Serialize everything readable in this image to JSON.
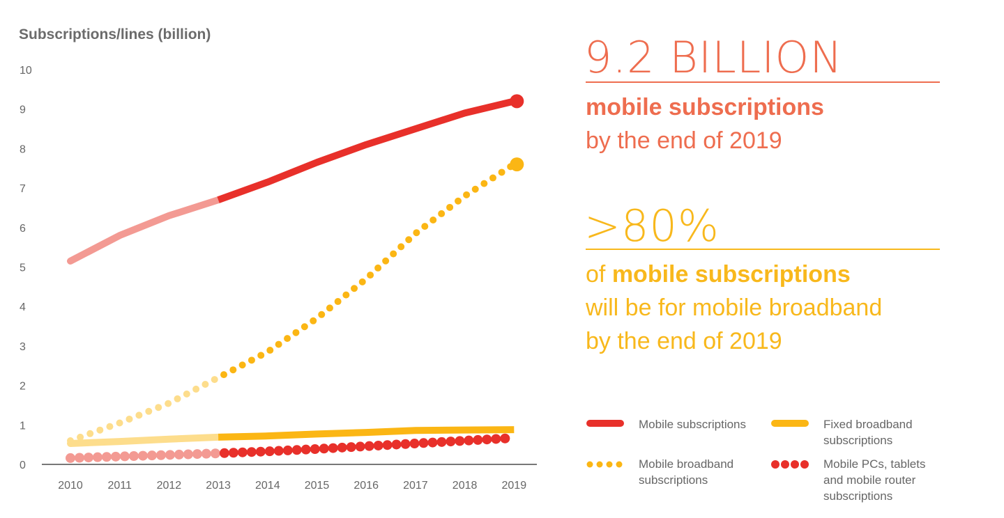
{
  "chart_data": {
    "type": "line",
    "ylabel": "Subscriptions/lines (billion)",
    "ylim": [
      0,
      10
    ],
    "yticks": [
      "0",
      "1",
      "2",
      "3",
      "4",
      "5",
      "6",
      "7",
      "8",
      "9",
      "10"
    ],
    "x": [
      2010,
      2011,
      2012,
      2013,
      2014,
      2015,
      2016,
      2017,
      2018,
      2019
    ],
    "xticks": [
      "2010",
      "2011",
      "2012",
      "2013",
      "2014",
      "2015",
      "2016",
      "2017",
      "2018",
      "2019"
    ],
    "historical_until": 2013,
    "grid": false,
    "legend_position": "bottom-right",
    "series": [
      {
        "name": "Mobile subscriptions",
        "style": "solid",
        "color": "#e8302a",
        "color_historical": "#f39a93",
        "values": [
          5.15,
          5.8,
          6.3,
          6.7,
          7.15,
          7.65,
          8.1,
          8.5,
          8.9,
          9.2
        ]
      },
      {
        "name": "Mobile broadband subscriptions",
        "style": "dotted",
        "color": "#fbb614",
        "color_historical": "#fddd8c",
        "values": [
          0.6,
          1.05,
          1.55,
          2.2,
          2.85,
          3.7,
          4.7,
          5.85,
          6.8,
          7.6
        ]
      },
      {
        "name": "Fixed broadband subscriptions",
        "style": "solid",
        "color": "#fbb614",
        "color_historical": "#fddd8c",
        "values": [
          0.53,
          0.58,
          0.64,
          0.69,
          0.72,
          0.77,
          0.81,
          0.86,
          0.87,
          0.88
        ]
      },
      {
        "name": "Mobile PCs, tablets and mobile router subscriptions",
        "style": "dots",
        "color": "#e8302a",
        "color_historical": "#f39a93",
        "values": [
          0.16,
          0.2,
          0.24,
          0.28,
          0.33,
          0.39,
          0.46,
          0.53,
          0.6,
          0.67
        ]
      }
    ]
  },
  "callouts": {
    "headline1": "9.2 BILLION",
    "line1_bold": "mobile subscriptions",
    "line1_rest": "by the end of 2019",
    "headline2": ">80%",
    "line2_prefix": "of ",
    "line2_bold": "mobile subscriptions",
    "line2_rest1": "will be for mobile broadband",
    "line2_rest2": "by the end of 2019",
    "color1": "#ee6d4f",
    "color2": "#f8b81c"
  }
}
